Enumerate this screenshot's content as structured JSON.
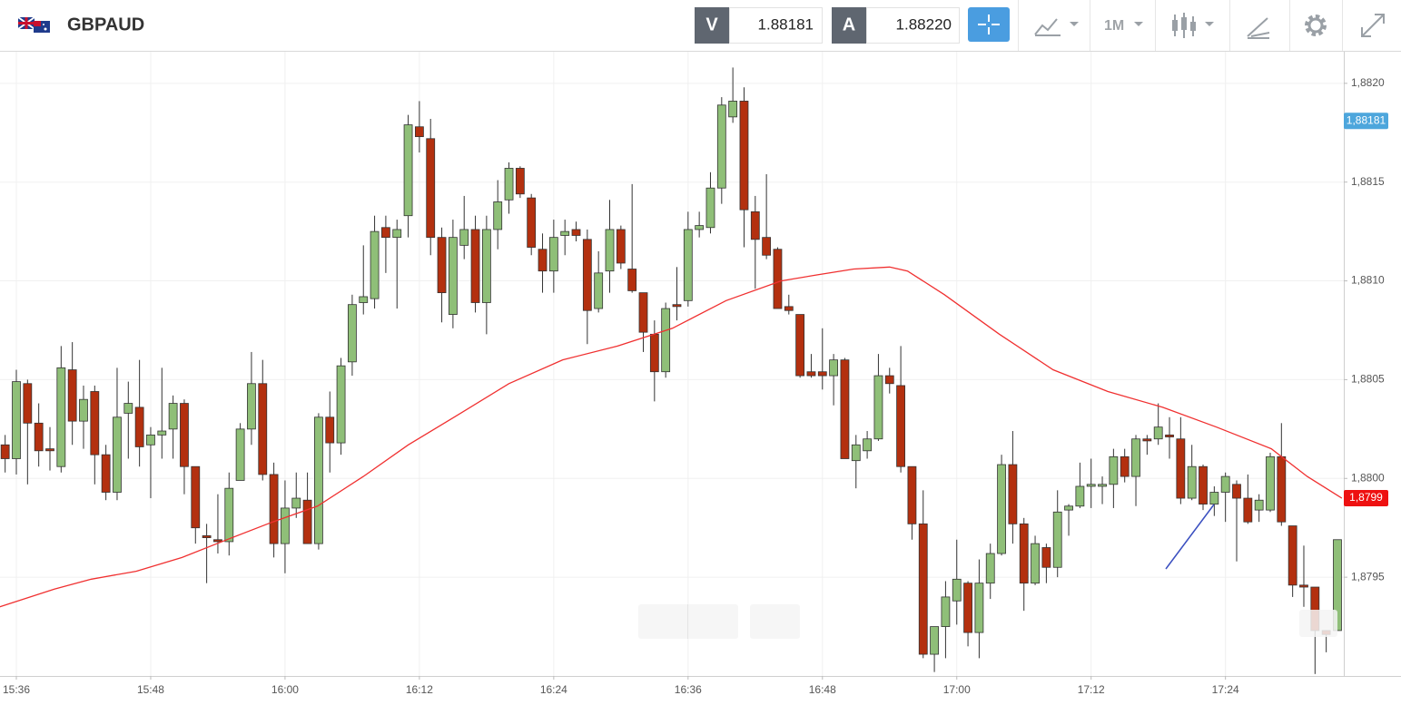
{
  "header": {
    "symbol": "GBPAUD",
    "bid_label": "V",
    "bid": "1.88181",
    "ask_label": "A",
    "ask": "1.88220",
    "timeframe": "1M"
  },
  "chart_data": {
    "type": "candlestick",
    "xlim": [
      934.54,
      1054.57
    ],
    "ylim": [
      1.879,
      1.88216
    ],
    "xticks": [
      {
        "value": 936,
        "label": "15:36"
      },
      {
        "value": 948,
        "label": "15:48"
      },
      {
        "value": 960,
        "label": "16:00"
      },
      {
        "value": 972,
        "label": "16:12"
      },
      {
        "value": 984,
        "label": "16:24"
      },
      {
        "value": 996,
        "label": "16:36"
      },
      {
        "value": 1008,
        "label": "16:48"
      },
      {
        "value": 1020,
        "label": "17:00"
      },
      {
        "value": 1032,
        "label": "17:12"
      },
      {
        "value": 1044,
        "label": "17:24"
      }
    ],
    "yticks": [
      {
        "value": 1.8795,
        "label": "1,8795"
      },
      {
        "value": 1.88,
        "label": "1,8800"
      },
      {
        "value": 1.8805,
        "label": "1,8805"
      },
      {
        "value": 1.881,
        "label": "1,8810"
      },
      {
        "value": 1.8815,
        "label": "1,8815"
      },
      {
        "value": 1.882,
        "label": "1,8820"
      }
    ],
    "grid": true,
    "up_color": "#8fbf78",
    "down_color": "#b3300f",
    "x": [
      935,
      936,
      937,
      938,
      939,
      940,
      941,
      942,
      943,
      944,
      945,
      946,
      947,
      948,
      949,
      950,
      951,
      952,
      953,
      954,
      955,
      956,
      957,
      958,
      959,
      960,
      961,
      962,
      963,
      964,
      965,
      966,
      967,
      968,
      969,
      970,
      971,
      972,
      973,
      974,
      975,
      976,
      977,
      978,
      979,
      980,
      981,
      982,
      983,
      984,
      985,
      986,
      987,
      988,
      989,
      990,
      991,
      992,
      993,
      994,
      995,
      996,
      997,
      998,
      999,
      1000,
      1001,
      1002,
      1003,
      1004,
      1005,
      1006,
      1007,
      1008,
      1009,
      1010,
      1011,
      1012,
      1013,
      1014,
      1015,
      1016,
      1017,
      1018,
      1019,
      1020,
      1021,
      1022,
      1023,
      1024,
      1025,
      1026,
      1027,
      1028,
      1029,
      1030,
      1031,
      1032,
      1033,
      1034,
      1035,
      1036,
      1037,
      1038,
      1039,
      1040,
      1041,
      1042,
      1043,
      1044,
      1045,
      1046,
      1047,
      1048,
      1049,
      1050,
      1051,
      1052,
      1053,
      1054
    ],
    "open": [
      1.88017,
      1.8801,
      1.88048,
      1.88028,
      1.88015,
      1.88006,
      1.88055,
      1.88029,
      1.88044,
      1.88012,
      1.87993,
      1.88033,
      1.88036,
      1.88017,
      1.88022,
      1.88025,
      1.88038,
      1.88006,
      1.87971,
      1.87969,
      1.87968,
      1.87999,
      1.88025,
      1.88048,
      1.88002,
      1.87967,
      1.87985,
      1.87989,
      1.87967,
      1.88031,
      1.88018,
      1.88059,
      1.88089,
      1.88091,
      1.88127,
      1.88122,
      1.88133,
      1.88178,
      1.88172,
      1.88122,
      1.88083,
      1.88118,
      1.88126,
      1.88089,
      1.88126,
      1.88141,
      1.88157,
      1.88142,
      1.88116,
      1.88105,
      1.88123,
      1.88126,
      1.88121,
      1.88086,
      1.88105,
      1.88126,
      1.88106,
      1.88094,
      1.88073,
      1.88054,
      1.88088,
      1.8809,
      1.88126,
      1.88127,
      1.88147,
      1.88183,
      1.88191,
      1.88135,
      1.88122,
      1.88116,
      1.88087,
      1.88083,
      1.88054,
      1.88054,
      1.88052,
      1.8806,
      1.88009,
      1.88014,
      1.8802,
      1.88052,
      1.88047,
      1.88006,
      1.87977,
      1.87911,
      1.87925,
      1.87938,
      1.87947,
      1.87922,
      1.87947,
      1.87962,
      1.88007,
      1.87977,
      1.87947,
      1.87965,
      1.87955,
      1.87984,
      1.87986,
      1.87996,
      1.87996,
      1.87997,
      1.88011,
      1.88001,
      1.8802,
      1.8802,
      1.88022,
      1.8802,
      1.8799,
      1.88006,
      1.87987,
      1.87993,
      1.87997,
      1.8799,
      1.87984,
      1.87984,
      1.88011,
      1.87976,
      1.87946,
      1.87945,
      1.87923,
      1.87923
    ],
    "high": [
      1.88022,
      1.88055,
      1.8805,
      1.88038,
      1.88026,
      1.88067,
      1.88069,
      1.88047,
      1.88047,
      1.88017,
      1.88056,
      1.88049,
      1.8806,
      1.88026,
      1.88056,
      1.88042,
      1.8804,
      1.88006,
      1.87977,
      1.87992,
      1.88003,
      1.88028,
      1.88064,
      1.8806,
      1.88008,
      1.87999,
      1.88003,
      1.88003,
      1.88033,
      1.88044,
      1.88061,
      1.88093,
      1.88118,
      1.88133,
      1.88133,
      1.88131,
      1.88184,
      1.88191,
      1.88182,
      1.88127,
      1.88131,
      1.88143,
      1.88133,
      1.88133,
      1.88151,
      1.8816,
      1.88158,
      1.88144,
      1.88124,
      1.88131,
      1.88131,
      1.8813,
      1.88126,
      1.88115,
      1.88141,
      1.88128,
      1.88149,
      1.88094,
      1.8808,
      1.88089,
      1.88107,
      1.88135,
      1.88135,
      1.88155,
      1.88193,
      1.88208,
      1.88198,
      1.88143,
      1.88154,
      1.88117,
      1.88093,
      1.88083,
      1.88063,
      1.88076,
      1.88063,
      1.88061,
      1.88022,
      1.88024,
      1.88063,
      1.88056,
      1.88067,
      1.88006,
      1.87994,
      1.87925,
      1.87948,
      1.87969,
      1.87948,
      1.87959,
      1.87967,
      1.88012,
      1.88024,
      1.8798,
      1.87971,
      1.87967,
      1.87994,
      1.87987,
      1.88008,
      1.8801,
      1.88001,
      1.88015,
      1.88015,
      1.88022,
      1.88022,
      1.88038,
      1.88031,
      1.88031,
      1.88017,
      1.88007,
      1.87996,
      1.88003,
      1.87999,
      1.88002,
      1.87992,
      1.88013,
      1.88028,
      1.87976,
      1.87966,
      1.87945,
      1.87923,
      1.87969
    ],
    "low": [
      1.88003,
      1.88002,
      1.87997,
      1.88006,
      1.88004,
      1.88003,
      1.88017,
      1.88015,
      1.87997,
      1.87989,
      1.87989,
      1.8801,
      1.88006,
      1.8799,
      1.8801,
      1.8801,
      1.87992,
      1.87967,
      1.87947,
      1.87962,
      1.87961,
      1.87999,
      1.88017,
      1.87999,
      1.8796,
      1.87952,
      1.8798,
      1.87967,
      1.87964,
      1.88003,
      1.88012,
      1.88052,
      1.88083,
      1.88086,
      1.88104,
      1.88086,
      1.88122,
      1.88165,
      1.88113,
      1.88079,
      1.88076,
      1.88111,
      1.88084,
      1.88073,
      1.88116,
      1.88134,
      1.88142,
      1.88113,
      1.88094,
      1.88094,
      1.88113,
      1.8812,
      1.88068,
      1.88084,
      1.88094,
      1.88106,
      1.88094,
      1.88064,
      1.88039,
      1.88051,
      1.8808,
      1.88087,
      1.88122,
      1.88124,
      1.88139,
      1.8818,
      1.88117,
      1.88096,
      1.88111,
      1.88086,
      1.88083,
      1.88051,
      1.88051,
      1.88045,
      1.88037,
      1.8801,
      1.87995,
      1.8801,
      1.88019,
      1.88043,
      1.88003,
      1.87969,
      1.87909,
      1.87902,
      1.87909,
      1.87926,
      1.87915,
      1.87909,
      1.87939,
      1.87961,
      1.87967,
      1.87933,
      1.87946,
      1.87947,
      1.8795,
      1.87971,
      1.87985,
      1.87985,
      1.87987,
      1.87985,
      1.87998,
      1.87986,
      1.88012,
      1.88017,
      1.8801,
      1.87987,
      1.87989,
      1.87984,
      1.87981,
      1.87978,
      1.87958,
      1.87977,
      1.87978,
      1.87983,
      1.87976,
      1.8794,
      1.87935,
      1.87901,
      1.87912,
      1.87923
    ],
    "close": [
      1.8801,
      1.88049,
      1.88028,
      1.88014,
      1.88014,
      1.88056,
      1.88029,
      1.8804,
      1.88012,
      1.87993,
      1.88031,
      1.88038,
      1.88016,
      1.88022,
      1.88024,
      1.88038,
      1.88006,
      1.87975,
      1.8797,
      1.87968,
      1.87995,
      1.88025,
      1.88048,
      1.88002,
      1.87967,
      1.87985,
      1.8799,
      1.87967,
      1.88031,
      1.88018,
      1.88057,
      1.88088,
      1.88092,
      1.88125,
      1.88122,
      1.88126,
      1.88179,
      1.88173,
      1.88122,
      1.88094,
      1.88122,
      1.88126,
      1.88089,
      1.88126,
      1.8814,
      1.88157,
      1.88144,
      1.88117,
      1.88105,
      1.88122,
      1.88125,
      1.88123,
      1.88085,
      1.88104,
      1.88126,
      1.88109,
      1.88095,
      1.88074,
      1.88054,
      1.88086,
      1.88087,
      1.88126,
      1.88128,
      1.88147,
      1.88189,
      1.88191,
      1.88136,
      1.88121,
      1.88113,
      1.88086,
      1.88085,
      1.88052,
      1.88052,
      1.88052,
      1.8806,
      1.8801,
      1.88017,
      1.8802,
      1.88052,
      1.88048,
      1.88006,
      1.87977,
      1.87911,
      1.87925,
      1.8794,
      1.87949,
      1.87922,
      1.87947,
      1.87962,
      1.88007,
      1.87977,
      1.87947,
      1.87967,
      1.87955,
      1.87983,
      1.87986,
      1.87996,
      1.87997,
      1.87997,
      1.88011,
      1.88001,
      1.8802,
      1.88019,
      1.88026,
      1.88021,
      1.8799,
      1.88006,
      1.87987,
      1.87993,
      1.88001,
      1.8799,
      1.87978,
      1.87989,
      1.88011,
      1.87978,
      1.87946,
      1.87945,
      1.87923,
      1.87921,
      1.87969
    ],
    "moving_average": {
      "color": "#f03030",
      "x": [
        934.5,
        939.4,
        942.7,
        946.7,
        950.8,
        954.8,
        958.9,
        962.9,
        967.0,
        971.0,
        975.1,
        980.0,
        984.8,
        989.7,
        994.6,
        999.4,
        1004.3,
        1007.5,
        1010.8,
        1014.0,
        1015.6,
        1018.9,
        1023.8,
        1028.6,
        1033.5,
        1038.4,
        1043.2,
        1048.1,
        1051.3,
        1054.4
      ],
      "values": [
        1.87935,
        1.87944,
        1.87949,
        1.87953,
        1.8796,
        1.87969,
        1.87978,
        1.87986,
        1.88001,
        1.88017,
        1.88031,
        1.88048,
        1.8806,
        1.88067,
        1.88076,
        1.8809,
        1.881,
        1.88103,
        1.88106,
        1.88107,
        1.88105,
        1.88093,
        1.88073,
        1.88055,
        1.88044,
        1.88036,
        1.88026,
        1.88015,
        1.88001,
        1.8799
      ]
    },
    "price_labels": [
      {
        "value": 1.88181,
        "label": "1,88181",
        "color": "#4da6dc"
      },
      {
        "value": 1.8799,
        "label": "1,8799",
        "color": "#ee1111"
      }
    ]
  }
}
